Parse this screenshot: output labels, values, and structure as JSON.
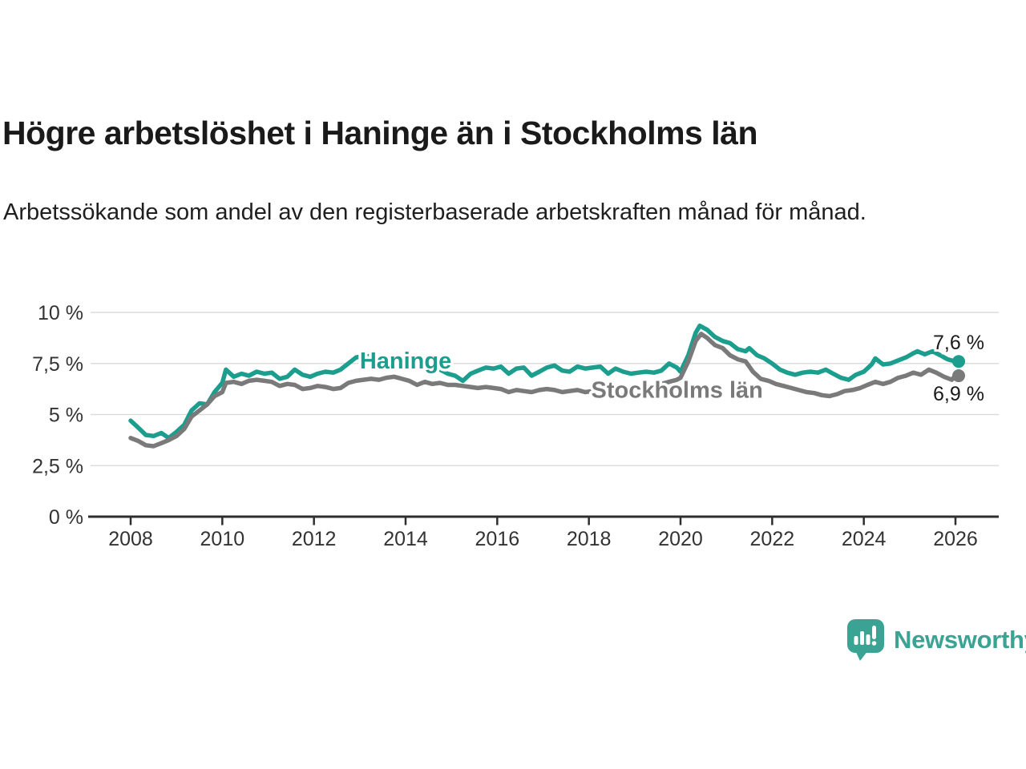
{
  "header": {
    "title": "Högre arbetslöshet i Haninge än i Stockholms län",
    "subtitle": "Arbetssökande som andel av den registerbaserade arbetskraften månad för månad."
  },
  "footer": {
    "brand": "Newsworthy"
  },
  "colors": {
    "haninge": "#1b9e8d",
    "stockholm": "#7a7a7a",
    "grid": "#dcdcdc",
    "axis": "#2e2e2e",
    "tick_text": "#333333",
    "value_text": "#1a1a1a",
    "brand_teal": "#3ba393"
  },
  "chart_data": {
    "type": "line",
    "title": "Högre arbetslöshet i Haninge än i Stockholms län",
    "subtitle": "Arbetssökande som andel av den registerbaserade arbetskraften månad för månad.",
    "xlabel": "",
    "ylabel": "",
    "unit": "%",
    "grid": true,
    "xlim": [
      2007.1,
      2026.9
    ],
    "ylim": [
      0,
      10
    ],
    "x_ticks": [
      "2008",
      "2010",
      "2012",
      "2014",
      "2016",
      "2018",
      "2020",
      "2022",
      "2024",
      "2026"
    ],
    "y_ticks": [
      {
        "v": 10,
        "label": "10 %"
      },
      {
        "v": 7.5,
        "label": "7,5 %"
      },
      {
        "v": 5,
        "label": "5 %"
      },
      {
        "v": 2.5,
        "label": "2,5 %"
      },
      {
        "v": 0,
        "label": "0 %"
      }
    ],
    "legend_position": "inline-labels",
    "series": [
      {
        "name": "Haninge",
        "color": "#1b9e8d",
        "end_label": "7,6 %",
        "end_value": 7.6,
        "label_anchor": [
          2013.0,
          7.65
        ],
        "points": [
          [
            2008.0,
            4.7
          ],
          [
            2008.17,
            4.35
          ],
          [
            2008.33,
            4.0
          ],
          [
            2008.5,
            3.95
          ],
          [
            2008.67,
            4.1
          ],
          [
            2008.83,
            3.85
          ],
          [
            2009.0,
            4.15
          ],
          [
            2009.17,
            4.5
          ],
          [
            2009.33,
            5.2
          ],
          [
            2009.5,
            5.55
          ],
          [
            2009.67,
            5.5
          ],
          [
            2009.83,
            6.1
          ],
          [
            2010.0,
            6.55
          ],
          [
            2010.08,
            7.2
          ],
          [
            2010.25,
            6.85
          ],
          [
            2010.42,
            7.0
          ],
          [
            2010.58,
            6.9
          ],
          [
            2010.75,
            7.1
          ],
          [
            2010.92,
            7.0
          ],
          [
            2011.08,
            7.05
          ],
          [
            2011.25,
            6.75
          ],
          [
            2011.42,
            6.85
          ],
          [
            2011.58,
            7.2
          ],
          [
            2011.75,
            6.95
          ],
          [
            2011.92,
            6.85
          ],
          [
            2012.08,
            7.0
          ],
          [
            2012.25,
            7.1
          ],
          [
            2012.42,
            7.05
          ],
          [
            2012.58,
            7.2
          ],
          [
            2012.75,
            7.5
          ],
          [
            2012.92,
            7.8
          ],
          [
            2013.08,
            7.85
          ],
          [
            2013.25,
            7.85
          ],
          [
            2013.42,
            7.7
          ],
          [
            2013.58,
            7.6
          ],
          [
            2013.75,
            7.65
          ],
          [
            2013.92,
            7.5
          ],
          [
            2014.08,
            7.4
          ],
          [
            2014.25,
            7.45
          ],
          [
            2014.42,
            7.3
          ],
          [
            2014.58,
            7.35
          ],
          [
            2014.75,
            7.2
          ],
          [
            2014.92,
            7.0
          ],
          [
            2015.08,
            6.9
          ],
          [
            2015.25,
            6.65
          ],
          [
            2015.42,
            7.0
          ],
          [
            2015.58,
            7.15
          ],
          [
            2015.75,
            7.3
          ],
          [
            2015.92,
            7.25
          ],
          [
            2016.08,
            7.35
          ],
          [
            2016.25,
            7.0
          ],
          [
            2016.42,
            7.25
          ],
          [
            2016.58,
            7.3
          ],
          [
            2016.75,
            6.9
          ],
          [
            2016.92,
            7.1
          ],
          [
            2017.08,
            7.3
          ],
          [
            2017.25,
            7.4
          ],
          [
            2017.42,
            7.15
          ],
          [
            2017.58,
            7.1
          ],
          [
            2017.75,
            7.35
          ],
          [
            2017.92,
            7.25
          ],
          [
            2018.08,
            7.3
          ],
          [
            2018.25,
            7.35
          ],
          [
            2018.42,
            7.0
          ],
          [
            2018.58,
            7.25
          ],
          [
            2018.75,
            7.1
          ],
          [
            2018.92,
            7.0
          ],
          [
            2019.08,
            7.05
          ],
          [
            2019.25,
            7.1
          ],
          [
            2019.42,
            7.05
          ],
          [
            2019.58,
            7.15
          ],
          [
            2019.75,
            7.5
          ],
          [
            2019.92,
            7.3
          ],
          [
            2020.0,
            7.1
          ],
          [
            2020.17,
            7.9
          ],
          [
            2020.33,
            9.0
          ],
          [
            2020.42,
            9.35
          ],
          [
            2020.58,
            9.15
          ],
          [
            2020.75,
            8.8
          ],
          [
            2020.92,
            8.6
          ],
          [
            2021.08,
            8.5
          ],
          [
            2021.25,
            8.2
          ],
          [
            2021.42,
            8.1
          ],
          [
            2021.5,
            8.25
          ],
          [
            2021.67,
            7.9
          ],
          [
            2021.83,
            7.75
          ],
          [
            2022.0,
            7.5
          ],
          [
            2022.17,
            7.2
          ],
          [
            2022.33,
            7.05
          ],
          [
            2022.5,
            6.95
          ],
          [
            2022.67,
            7.05
          ],
          [
            2022.83,
            7.1
          ],
          [
            2023.0,
            7.05
          ],
          [
            2023.17,
            7.2
          ],
          [
            2023.33,
            7.0
          ],
          [
            2023.5,
            6.8
          ],
          [
            2023.67,
            6.7
          ],
          [
            2023.83,
            6.95
          ],
          [
            2024.0,
            7.1
          ],
          [
            2024.17,
            7.45
          ],
          [
            2024.25,
            7.75
          ],
          [
            2024.42,
            7.45
          ],
          [
            2024.58,
            7.5
          ],
          [
            2024.75,
            7.65
          ],
          [
            2024.92,
            7.8
          ],
          [
            2025.08,
            8.0
          ],
          [
            2025.17,
            8.1
          ],
          [
            2025.33,
            7.95
          ],
          [
            2025.5,
            8.1
          ],
          [
            2025.67,
            7.9
          ],
          [
            2025.83,
            7.7
          ],
          [
            2026.0,
            7.6
          ]
        ]
      },
      {
        "name": "Stockholms län",
        "color": "#7a7a7a",
        "end_label": "6,9 %",
        "end_value": 6.9,
        "label_anchor": [
          2018.05,
          6.22
        ],
        "points": [
          [
            2008.0,
            3.85
          ],
          [
            2008.17,
            3.7
          ],
          [
            2008.33,
            3.5
          ],
          [
            2008.5,
            3.45
          ],
          [
            2008.67,
            3.6
          ],
          [
            2008.83,
            3.75
          ],
          [
            2009.0,
            3.95
          ],
          [
            2009.17,
            4.3
          ],
          [
            2009.33,
            4.9
          ],
          [
            2009.5,
            5.2
          ],
          [
            2009.67,
            5.5
          ],
          [
            2009.83,
            5.9
          ],
          [
            2010.0,
            6.1
          ],
          [
            2010.08,
            6.55
          ],
          [
            2010.25,
            6.6
          ],
          [
            2010.42,
            6.5
          ],
          [
            2010.58,
            6.65
          ],
          [
            2010.75,
            6.7
          ],
          [
            2010.92,
            6.65
          ],
          [
            2011.08,
            6.6
          ],
          [
            2011.25,
            6.4
          ],
          [
            2011.42,
            6.5
          ],
          [
            2011.58,
            6.45
          ],
          [
            2011.75,
            6.25
          ],
          [
            2011.92,
            6.3
          ],
          [
            2012.08,
            6.4
          ],
          [
            2012.25,
            6.35
          ],
          [
            2012.42,
            6.25
          ],
          [
            2012.58,
            6.3
          ],
          [
            2012.75,
            6.55
          ],
          [
            2012.92,
            6.65
          ],
          [
            2013.08,
            6.7
          ],
          [
            2013.25,
            6.75
          ],
          [
            2013.42,
            6.7
          ],
          [
            2013.58,
            6.8
          ],
          [
            2013.75,
            6.85
          ],
          [
            2013.92,
            6.75
          ],
          [
            2014.08,
            6.65
          ],
          [
            2014.25,
            6.45
          ],
          [
            2014.42,
            6.6
          ],
          [
            2014.58,
            6.5
          ],
          [
            2014.75,
            6.55
          ],
          [
            2014.92,
            6.45
          ],
          [
            2015.08,
            6.45
          ],
          [
            2015.25,
            6.4
          ],
          [
            2015.42,
            6.35
          ],
          [
            2015.58,
            6.3
          ],
          [
            2015.75,
            6.35
          ],
          [
            2015.92,
            6.3
          ],
          [
            2016.08,
            6.25
          ],
          [
            2016.25,
            6.1
          ],
          [
            2016.42,
            6.2
          ],
          [
            2016.58,
            6.15
          ],
          [
            2016.75,
            6.1
          ],
          [
            2016.92,
            6.2
          ],
          [
            2017.08,
            6.25
          ],
          [
            2017.25,
            6.2
          ],
          [
            2017.42,
            6.1
          ],
          [
            2017.58,
            6.15
          ],
          [
            2017.75,
            6.2
          ],
          [
            2017.92,
            6.1
          ],
          [
            2018.08,
            6.15
          ],
          [
            2018.25,
            6.1
          ],
          [
            2018.42,
            6.05
          ],
          [
            2018.58,
            6.1
          ],
          [
            2018.75,
            6.15
          ],
          [
            2018.92,
            6.2
          ],
          [
            2019.08,
            6.25
          ],
          [
            2019.25,
            6.3
          ],
          [
            2019.42,
            6.4
          ],
          [
            2019.58,
            6.5
          ],
          [
            2019.75,
            6.6
          ],
          [
            2019.92,
            6.7
          ],
          [
            2020.0,
            6.8
          ],
          [
            2020.17,
            7.6
          ],
          [
            2020.33,
            8.6
          ],
          [
            2020.45,
            8.95
          ],
          [
            2020.58,
            8.75
          ],
          [
            2020.75,
            8.4
          ],
          [
            2020.92,
            8.25
          ],
          [
            2021.08,
            7.9
          ],
          [
            2021.25,
            7.7
          ],
          [
            2021.42,
            7.6
          ],
          [
            2021.58,
            7.1
          ],
          [
            2021.75,
            6.75
          ],
          [
            2021.92,
            6.65
          ],
          [
            2022.08,
            6.5
          ],
          [
            2022.25,
            6.4
          ],
          [
            2022.42,
            6.3
          ],
          [
            2022.58,
            6.2
          ],
          [
            2022.75,
            6.1
          ],
          [
            2022.92,
            6.05
          ],
          [
            2023.08,
            5.95
          ],
          [
            2023.25,
            5.9
          ],
          [
            2023.42,
            6.0
          ],
          [
            2023.58,
            6.15
          ],
          [
            2023.75,
            6.2
          ],
          [
            2023.92,
            6.3
          ],
          [
            2024.08,
            6.45
          ],
          [
            2024.25,
            6.6
          ],
          [
            2024.42,
            6.5
          ],
          [
            2024.58,
            6.6
          ],
          [
            2024.75,
            6.8
          ],
          [
            2024.92,
            6.9
          ],
          [
            2025.08,
            7.05
          ],
          [
            2025.25,
            6.95
          ],
          [
            2025.42,
            7.2
          ],
          [
            2025.58,
            7.05
          ],
          [
            2025.75,
            6.85
          ],
          [
            2025.92,
            6.7
          ],
          [
            2026.0,
            6.9
          ]
        ]
      }
    ]
  }
}
